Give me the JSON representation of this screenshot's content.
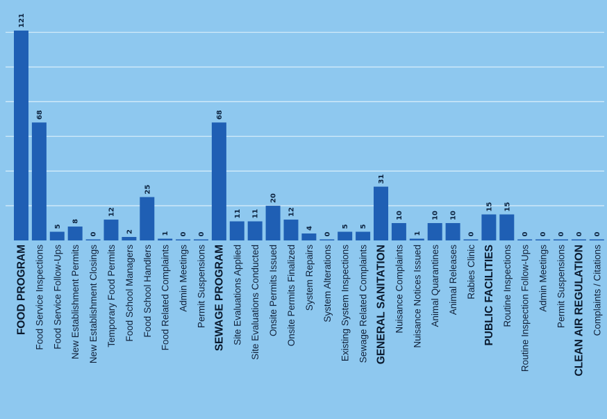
{
  "chart_data": {
    "type": "bar",
    "orientation": "vertical",
    "categories": [
      "FOOD PROGRAM",
      "Food Service Inspections",
      "Food Service Follow-Ups",
      "New Establishment Permits",
      "New Establishment Closings",
      "Temporary Food Permits",
      "Food School Managers",
      "Food School Handlers",
      "Food Related Complaints",
      "Admin Meetings",
      "Permit Suspensions",
      "SEWAGE PROGRAM",
      "Site Evaluations Applied",
      "Site Evaluations Conducted",
      "Onsite Permits Issued",
      "Onsite Permits Finalized",
      "System Repairs",
      "System Alterations",
      "Existing System Inspections",
      "Sewage Related Complaints",
      "GENERAL SANITATION",
      "Nuisance Complaints",
      "Nuisance Notices Issued",
      "Animal Quarantines",
      "Animal Releases",
      "Rabies Clinic",
      "PUBLIC FACILITIES",
      "Routine Inspections",
      "Routine Inspection Follow-Ups",
      "Admin Meetings",
      "Permit Suspensions",
      "CLEAN AIR REGULATION",
      "Complaints / Citations"
    ],
    "values": [
      121,
      68,
      5,
      8,
      0,
      12,
      2,
      25,
      1,
      0,
      0,
      68,
      11,
      11,
      20,
      12,
      4,
      0,
      5,
      5,
      31,
      10,
      1,
      10,
      10,
      0,
      15,
      15,
      0,
      0,
      0,
      0,
      0
    ],
    "value_labels": [
      "121",
      "68",
      "5",
      "8",
      "0",
      "12",
      "2",
      "25",
      "1",
      "0",
      "0",
      "68",
      "11",
      "11",
      "20",
      "12",
      "4",
      "0",
      "5",
      "5",
      "31",
      "10",
      "1",
      "10",
      "10",
      "0",
      "15",
      "15",
      "0",
      "0",
      "0",
      "0",
      "0"
    ],
    "section_headers": [
      "FOOD PROGRAM",
      "SEWAGE PROGRAM",
      "GENERAL SANITATION",
      "PUBLIC FACILITIES",
      "CLEAN AIR REGULATION"
    ],
    "ylim": [
      0,
      121
    ],
    "grid": true,
    "gridlines_at": [
      20,
      40,
      60,
      80,
      100,
      120
    ],
    "colors": {
      "background": "#8ec8ef",
      "bar": "#1f5fb4",
      "grid": "#d4ecfa",
      "text": "#10213a"
    }
  }
}
